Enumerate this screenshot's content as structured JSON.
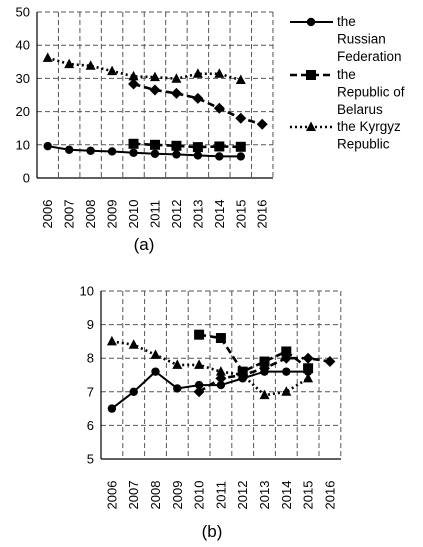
{
  "chart_data": [
    {
      "type": "line",
      "caption": "(a)",
      "x": [
        "2006",
        "2007",
        "2008",
        "2009",
        "2010",
        "2011",
        "2012",
        "2013",
        "2014",
        "2015",
        "2016"
      ],
      "ylim": [
        0,
        50
      ],
      "yticks": [
        0,
        10,
        20,
        30,
        40,
        50
      ],
      "grid": "dashed",
      "legend": "right",
      "series": [
        {
          "name": "the Russian Federation",
          "name_lines": [
            "the",
            "Russian",
            "Federation"
          ],
          "style": "solid",
          "marker": "circle",
          "color": "#000000",
          "values": [
            9.6,
            8.5,
            8.2,
            8.0,
            7.6,
            7.3,
            7.1,
            6.8,
            6.5,
            6.5,
            null
          ]
        },
        {
          "name": "the Republic of Belarus",
          "name_lines": [
            "the",
            "Republic of",
            "Belarus"
          ],
          "style": "dashed",
          "marker": "square",
          "color": "#000000",
          "values": [
            null,
            null,
            null,
            null,
            10.3,
            10.0,
            9.7,
            9.3,
            9.5,
            9.4,
            null
          ]
        },
        {
          "name": "the Kyrgyz Republic",
          "name_lines": [
            "the Kyrgyz",
            "Republic"
          ],
          "style": "dotted",
          "marker": "triangle",
          "color": "#000000",
          "values": [
            36.2,
            34.3,
            33.8,
            32.2,
            30.6,
            30.4,
            29.9,
            31.4,
            31.4,
            29.5,
            null
          ]
        },
        {
          "name": "",
          "style": "dashed",
          "marker": "diamond",
          "color": "#000000",
          "values": [
            null,
            null,
            null,
            null,
            28.3,
            26.5,
            25.5,
            24.0,
            21.0,
            18.0,
            16.2
          ]
        }
      ]
    },
    {
      "type": "line",
      "caption": "(b)",
      "x": [
        "2006",
        "2007",
        "2008",
        "2009",
        "2010",
        "2011",
        "2012",
        "2013",
        "2014",
        "2015",
        "2016"
      ],
      "ylim": [
        5,
        10
      ],
      "yticks": [
        5,
        6,
        7,
        8,
        9,
        10
      ],
      "grid": "dashed",
      "series": [
        {
          "name": "",
          "style": "solid",
          "marker": "circle",
          "color": "#000000",
          "values": [
            6.5,
            7.0,
            7.6,
            7.1,
            7.2,
            7.2,
            7.4,
            7.6,
            7.6,
            7.6,
            null
          ]
        },
        {
          "name": "",
          "style": "dashed",
          "marker": "square",
          "color": "#000000",
          "values": [
            null,
            null,
            null,
            null,
            8.7,
            8.6,
            7.6,
            7.9,
            8.2,
            7.7,
            null
          ]
        },
        {
          "name": "",
          "style": "dotted",
          "marker": "triangle",
          "color": "#000000",
          "values": [
            8.5,
            8.4,
            8.1,
            7.8,
            7.8,
            7.6,
            7.5,
            6.9,
            7.0,
            7.4,
            null
          ]
        },
        {
          "name": "",
          "style": "dashed",
          "marker": "diamond",
          "color": "#000000",
          "values": [
            null,
            null,
            null,
            null,
            7.0,
            7.4,
            7.5,
            7.7,
            8.0,
            8.0,
            7.9
          ]
        }
      ]
    }
  ]
}
